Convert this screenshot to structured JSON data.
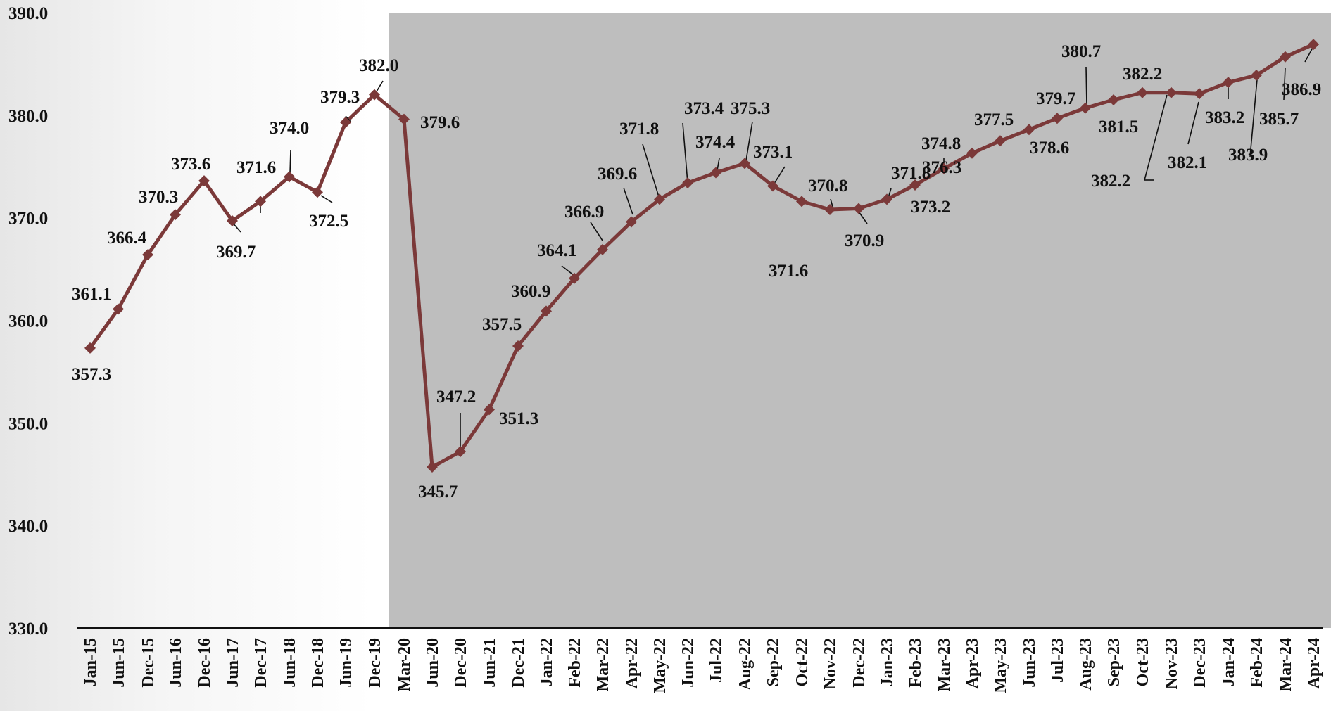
{
  "chart_data": {
    "type": "line",
    "title": "",
    "xlabel": "",
    "ylabel": "",
    "ylim": [
      330,
      390
    ],
    "yticks": [
      {
        "value": 330,
        "label": "330.0"
      },
      {
        "value": 340,
        "label": "340.0"
      },
      {
        "value": 350,
        "label": "350.0"
      },
      {
        "value": 360,
        "label": "360.0"
      },
      {
        "value": 370,
        "label": "370.0"
      },
      {
        "value": 380,
        "label": "380.0"
      },
      {
        "value": 390,
        "label": "390.0"
      }
    ],
    "grid": false,
    "legend": "none",
    "shaded_region": {
      "start": "Mar-20",
      "end": "Apr-24"
    },
    "colors": {
      "line": "#7b3939",
      "marker": "#7b3939",
      "shade": "#bebebe",
      "axis": "#111111"
    },
    "categories": [
      "Jan-15",
      "Jun-15",
      "Dec-15",
      "Jun-16",
      "Dec-16",
      "Jun-17",
      "Dec-17",
      "Jun-18",
      "Dec-18",
      "Jun-19",
      "Dec-19",
      "Mar-20",
      "Jun-20",
      "Dec-20",
      "Jun-21",
      "Dec-21",
      "Jan-22",
      "Feb-22",
      "Mar-22",
      "Apr-22",
      "May-22",
      "Jun-22",
      "Jul-22",
      "Aug-22",
      "Sep-22",
      "Oct-22",
      "Nov-22",
      "Dec-22",
      "Jan-23",
      "Feb-23",
      "Mar-23",
      "Apr-23",
      "May-23",
      "Jun-23",
      "Jul-23",
      "Aug-23",
      "Sep-23",
      "Oct-23",
      "Nov-23",
      "Dec-23",
      "Jan-24",
      "Feb-24",
      "Mar-24",
      "Apr-24"
    ],
    "series": [
      {
        "values": [
          357.3,
          361.1,
          366.4,
          370.3,
          373.6,
          369.7,
          371.6,
          374.0,
          372.5,
          379.3,
          382.0,
          379.6,
          345.7,
          347.2,
          351.3,
          357.5,
          360.9,
          364.1,
          366.9,
          369.6,
          371.8,
          373.4,
          374.4,
          375.3,
          373.1,
          371.6,
          370.8,
          370.9,
          371.8,
          373.2,
          374.8,
          376.3,
          377.5,
          378.6,
          379.7,
          380.7,
          381.5,
          382.2,
          382.2,
          382.1,
          383.2,
          383.9,
          385.7,
          386.9
        ],
        "labels": [
          "357.3",
          "361.1",
          "366.4",
          "370.3",
          "373.6",
          "369.7",
          "371.6",
          "374.0",
          "372.5",
          "379.3",
          "382.0",
          "379.6",
          "345.7",
          "347.2",
          "351.3",
          "357.5",
          "360.9",
          "364.1",
          "366.9",
          "369.6",
          "371.8",
          "373.4",
          "374.4",
          "375.3",
          "373.1",
          "371.6",
          "370.8",
          "370.9",
          "371.8",
          "373.2",
          "374.8",
          "376.3",
          "377.5",
          "378.6",
          "379.7",
          "380.7",
          "381.5",
          "382.2",
          "382.2",
          "382.1",
          "383.2",
          "383.9",
          "385.7",
          "386.9"
        ]
      }
    ]
  }
}
